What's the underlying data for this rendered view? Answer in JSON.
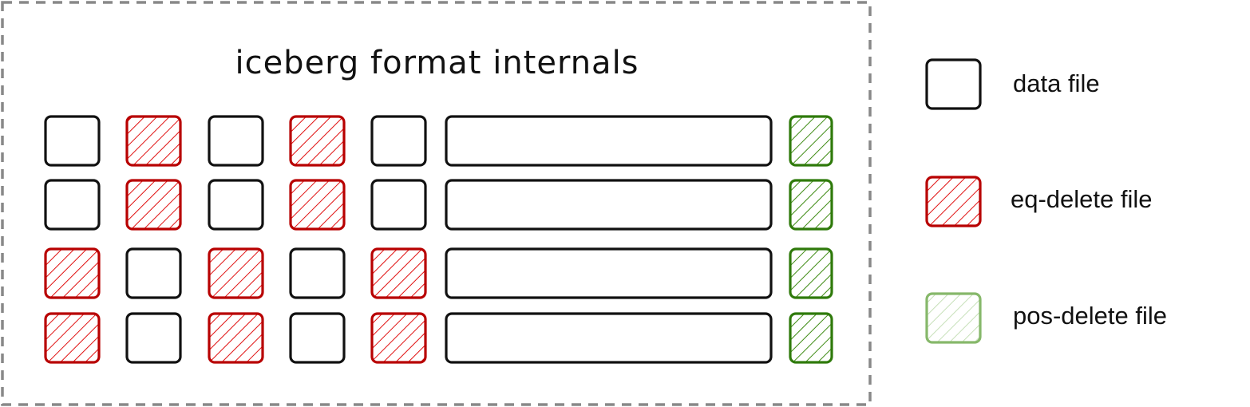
{
  "diagram": {
    "title": "iceberg format internals",
    "colors": {
      "data_file": "#111111",
      "eq_delete_file": "#b80000",
      "eq_delete_hatch": "#e01010",
      "pos_delete_file": "#2f7a0b",
      "pos_delete_legend": "#86b86a",
      "border": "#888888"
    },
    "rows": [
      [
        "data",
        "eq-delete",
        "data",
        "eq-delete",
        "data"
      ],
      [
        "data",
        "eq-delete",
        "data",
        "eq-delete",
        "data"
      ],
      [
        "eq-delete",
        "data",
        "eq-delete",
        "data",
        "eq-delete"
      ],
      [
        "eq-delete",
        "data",
        "eq-delete",
        "data",
        "eq-delete"
      ]
    ],
    "row_tail": [
      "long-data",
      "pos-delete"
    ]
  },
  "legend": [
    {
      "type": "data",
      "label": "data file"
    },
    {
      "type": "eq-delete",
      "label": "eq-delete file"
    },
    {
      "type": "pos-delete",
      "label": "pos-delete file"
    }
  ]
}
